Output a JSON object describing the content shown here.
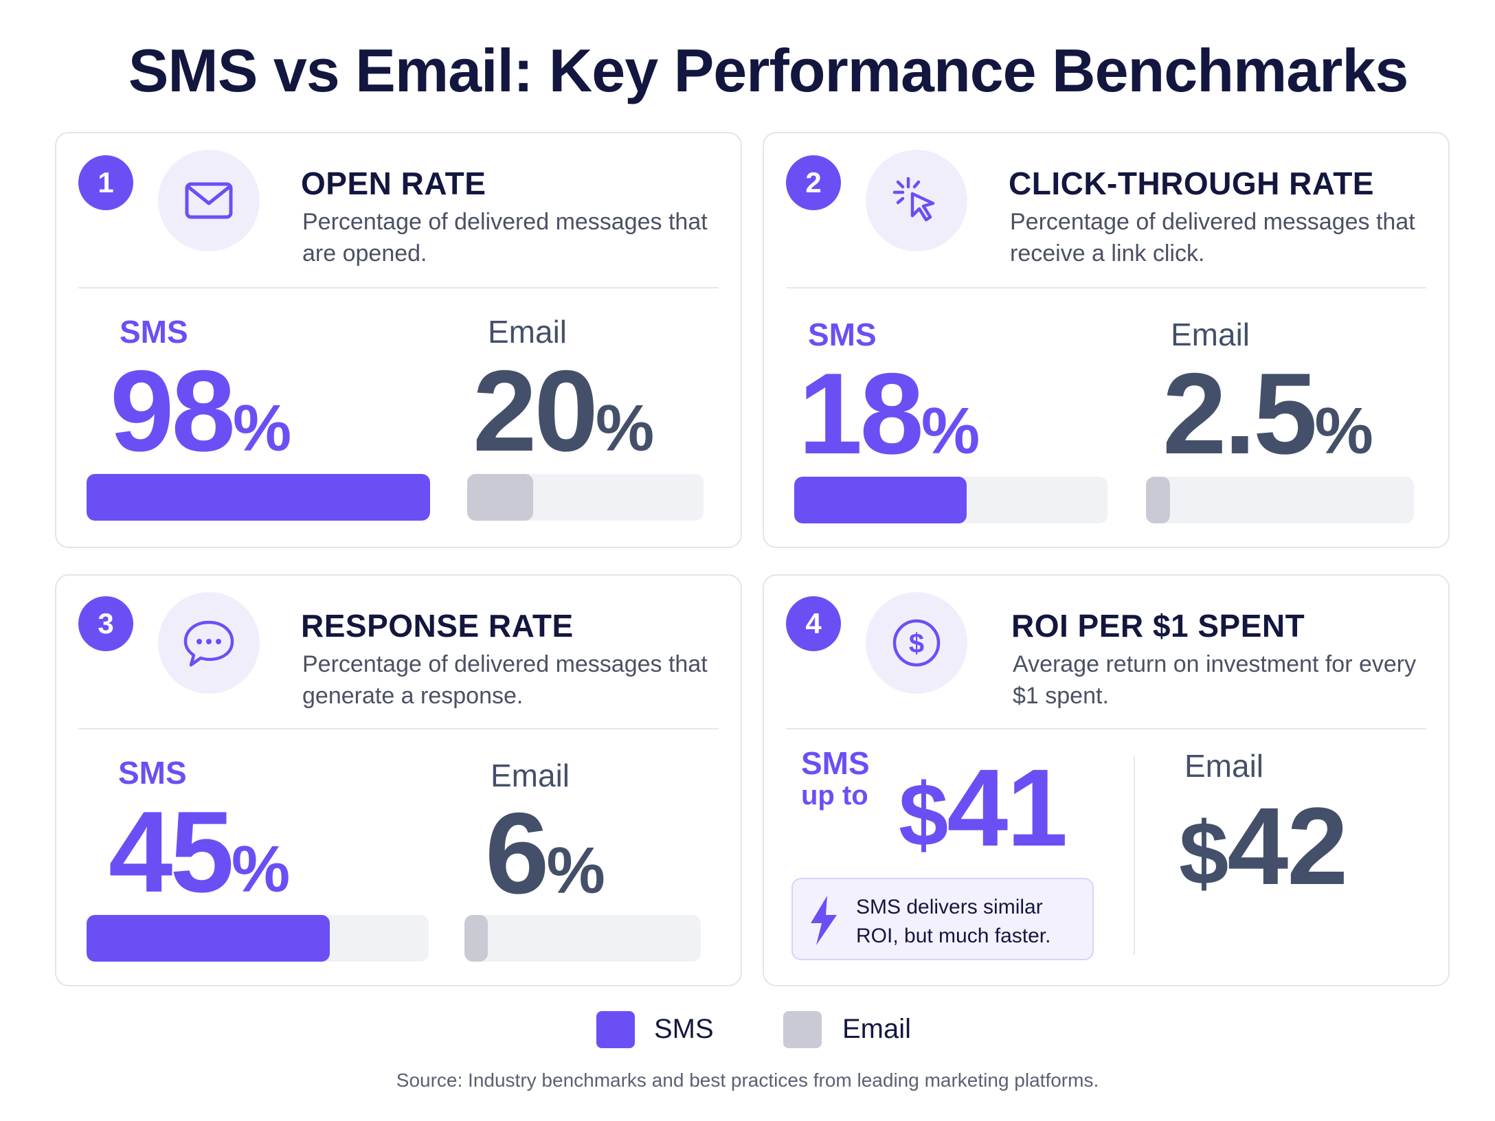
{
  "title": "SMS vs Email: Key Performance Benchmarks",
  "cards": [
    {
      "number": "1",
      "icon": "envelope-icon",
      "title": "OPEN RATE",
      "description": "Percentage of delivered messages that are opened.",
      "sms_label": "SMS",
      "sms_value": "98",
      "sms_unit": "%",
      "email_label": "Email",
      "email_value": "20",
      "email_unit": "%"
    },
    {
      "number": "2",
      "icon": "cursor-click-icon",
      "title": "CLICK-THROUGH RATE",
      "description": "Percentage of delivered messages that receive a link click.",
      "sms_label": "SMS",
      "sms_value": "18",
      "sms_unit": "%",
      "email_label": "Email",
      "email_value": "2.5",
      "email_unit": "%"
    },
    {
      "number": "3",
      "icon": "chat-bubble-icon",
      "title": "RESPONSE RATE",
      "description": "Percentage of delivered messages that generate a response.",
      "sms_label": "SMS",
      "sms_value": "45",
      "sms_unit": "%",
      "email_label": "Email",
      "email_value": "6",
      "email_unit": "%"
    },
    {
      "number": "4",
      "icon": "dollar-coin-icon",
      "title": "ROI PER $1 SPENT",
      "description": "Average return on investment for every $1 spent.",
      "sms_label": "SMS",
      "sms_prefix": "up to",
      "sms_currency": "$",
      "sms_value": "41",
      "email_label": "Email",
      "email_currency": "$",
      "email_value": "42",
      "callout_icon": "lightning-icon",
      "callout": "SMS delivers similar ROI, but much faster."
    }
  ],
  "legend": [
    {
      "label": "SMS",
      "color": "#6b4ff5"
    },
    {
      "label": "Email",
      "color": "#c9cad3"
    }
  ],
  "source": "Source: Industry benchmarks and best practices from leading marketing platforms.",
  "chart_data": [
    {
      "type": "bar",
      "title": "OPEN RATE",
      "categories": [
        "SMS",
        "Email"
      ],
      "values": [
        98,
        20
      ],
      "unit": "%",
      "ylim": [
        0,
        100
      ]
    },
    {
      "type": "bar",
      "title": "CLICK-THROUGH RATE",
      "categories": [
        "SMS",
        "Email"
      ],
      "values": [
        18,
        2.5
      ],
      "unit": "%"
    },
    {
      "type": "bar",
      "title": "RESPONSE RATE",
      "categories": [
        "SMS",
        "Email"
      ],
      "values": [
        45,
        6
      ],
      "unit": "%",
      "ylim": [
        0,
        100
      ]
    },
    {
      "type": "table",
      "title": "ROI PER $1 SPENT",
      "categories": [
        "SMS",
        "Email"
      ],
      "values": [
        41,
        42
      ],
      "unit": "$"
    }
  ],
  "bar_fill": [
    {
      "sms": 1.0,
      "email": 0.28
    },
    {
      "sms": 0.55,
      "email": 0.09
    },
    {
      "sms": 0.71,
      "email": 0.1
    }
  ],
  "colors": {
    "sms": "#6b4ff5",
    "email": "#44506a",
    "title": "#13173f"
  }
}
